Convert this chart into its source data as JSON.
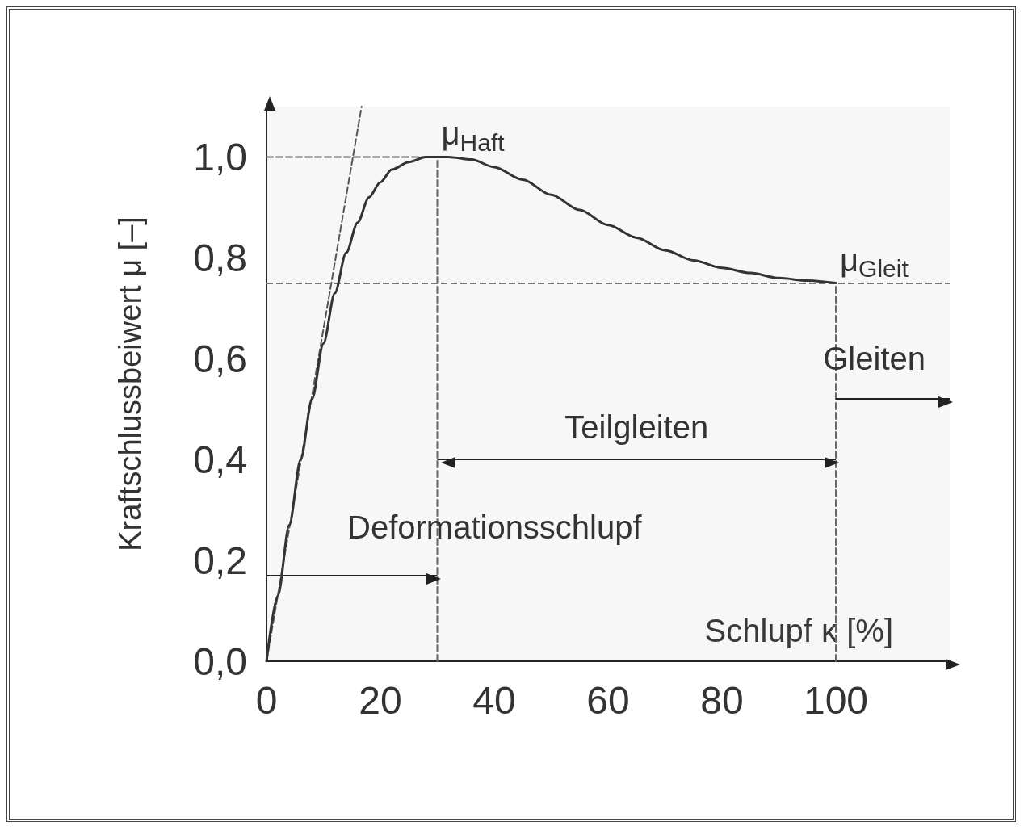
{
  "chart_data": {
    "type": "line",
    "xlabel": "Schlupf κ [%]",
    "ylabel": "Kraftschlussbeiwert μ [–]",
    "xlim": [
      0,
      120
    ],
    "ylim": [
      0,
      1.1
    ],
    "xticks": [
      0,
      20,
      40,
      60,
      80,
      100
    ],
    "yticks": [
      {
        "value": 0,
        "label": "0,0"
      },
      {
        "value": 0.2,
        "label": "0,2"
      },
      {
        "value": 0.4,
        "label": "0,4"
      },
      {
        "value": 0.6,
        "label": "0,6"
      },
      {
        "value": 0.8,
        "label": "0,8"
      },
      {
        "value": 1.0,
        "label": "1,0"
      }
    ],
    "grid": false,
    "marker": "none",
    "line_style": "solid",
    "series": [
      {
        "color": "#333333",
        "x": [
          0,
          2,
          4,
          6,
          8,
          10,
          12,
          14,
          16,
          18,
          20,
          22,
          25,
          28,
          32,
          36,
          40,
          45,
          50,
          55,
          60,
          65,
          70,
          75,
          80,
          85,
          90,
          95,
          100
        ],
        "values": [
          0,
          0.13,
          0.27,
          0.4,
          0.52,
          0.63,
          0.73,
          0.81,
          0.87,
          0.92,
          0.95,
          0.975,
          0.99,
          1.0,
          1.0,
          0.995,
          0.98,
          0.955,
          0.925,
          0.895,
          0.865,
          0.84,
          0.815,
          0.795,
          0.78,
          0.77,
          0.76,
          0.755,
          0.75
        ]
      },
      {
        "color": "#555555",
        "line_style": "dashed",
        "x": [
          0,
          16.7
        ],
        "values": [
          0,
          1.1
        ]
      },
      {
        "color": "#666666",
        "line_style": "dashed",
        "x": [
          0,
          30
        ],
        "values": [
          1.0,
          1.0
        ]
      },
      {
        "color": "#666666",
        "line_style": "dashed",
        "x": [
          30,
          30
        ],
        "values": [
          0,
          1.0
        ]
      },
      {
        "color": "#666666",
        "line_style": "dashed",
        "x": [
          100,
          100
        ],
        "values": [
          0,
          0.75
        ]
      }
    ],
    "ref_lines": [
      {
        "axis": "y",
        "value": 0.75,
        "color": "#777777",
        "line_style": "dashed"
      }
    ],
    "bands": [
      {
        "axis": "x",
        "from": 0,
        "to": 30,
        "label": "Deformationsschlupf"
      },
      {
        "axis": "x",
        "from": 30,
        "to": 100,
        "label": "Teilgleiten"
      },
      {
        "axis": "x",
        "from": 100,
        "to": 120,
        "label": "Gleiten"
      }
    ],
    "annotations": [
      {
        "text": "μ$_{Haft}$",
        "x": 30,
        "y": 1.0
      },
      {
        "text": "μ$_{Gleit}$",
        "x": 100,
        "y": 0.75
      }
    ]
  }
}
